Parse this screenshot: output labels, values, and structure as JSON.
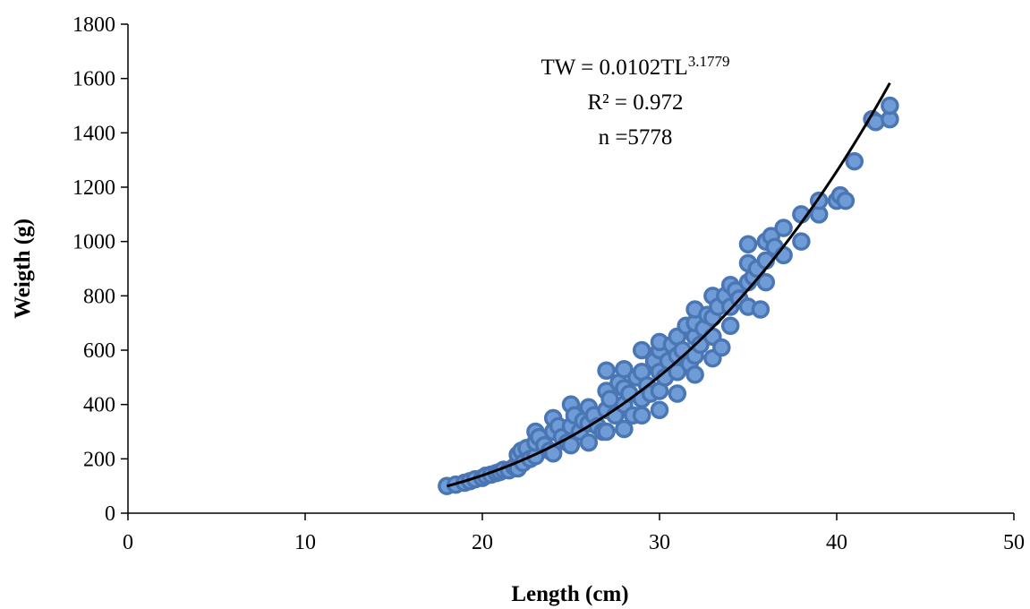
{
  "chart_data": {
    "type": "scatter",
    "xlabel": "Length (cm)",
    "ylabel": "Weigth (g)",
    "xlim": [
      0,
      50
    ],
    "ylim": [
      0,
      1800
    ],
    "xticks": [
      0,
      10,
      20,
      30,
      40,
      50
    ],
    "yticks": [
      0,
      200,
      400,
      600,
      800,
      1000,
      1200,
      1400,
      1600,
      1800
    ],
    "grid": false,
    "marker_color": "#6f9bd6",
    "marker_edge_color": "#4a77b4",
    "trend_color": "#000000",
    "annotation": {
      "equation_base": "TW = 0.0102TL",
      "equation_exponent": "3.1779",
      "r_squared": "R² = 0.972",
      "n": "n =5778"
    },
    "trendline": {
      "a": 0.0102,
      "b": 3.1779,
      "x_range": [
        18,
        43
      ]
    },
    "points": [
      [
        18,
        100
      ],
      [
        18.5,
        105
      ],
      [
        19,
        112
      ],
      [
        19.3,
        118
      ],
      [
        19.6,
        125
      ],
      [
        20,
        130
      ],
      [
        20.2,
        138
      ],
      [
        20.5,
        142
      ],
      [
        20.8,
        148
      ],
      [
        21,
        152
      ],
      [
        21.2,
        160
      ],
      [
        21.5,
        158
      ],
      [
        21.8,
        170
      ],
      [
        22,
        165
      ],
      [
        22,
        215
      ],
      [
        22.2,
        230
      ],
      [
        22.3,
        185
      ],
      [
        22.5,
        240
      ],
      [
        22.7,
        200
      ],
      [
        23,
        210
      ],
      [
        23,
        260
      ],
      [
        23,
        300
      ],
      [
        23.2,
        280
      ],
      [
        23.5,
        250
      ],
      [
        23.8,
        230
      ],
      [
        24,
        220
      ],
      [
        24,
        300
      ],
      [
        24,
        350
      ],
      [
        24.3,
        320
      ],
      [
        24.5,
        280
      ],
      [
        24.8,
        260
      ],
      [
        25,
        250
      ],
      [
        25,
        320
      ],
      [
        25,
        400
      ],
      [
        25.2,
        360
      ],
      [
        25.5,
        300
      ],
      [
        25.7,
        340
      ],
      [
        26,
        260
      ],
      [
        26,
        330
      ],
      [
        26,
        390
      ],
      [
        26.3,
        360
      ],
      [
        26.5,
        320
      ],
      [
        26.8,
        300
      ],
      [
        27,
        300
      ],
      [
        27,
        380
      ],
      [
        27,
        450
      ],
      [
        27,
        525
      ],
      [
        27.2,
        420
      ],
      [
        27.5,
        360
      ],
      [
        27.7,
        480
      ],
      [
        28,
        310
      ],
      [
        28,
        400
      ],
      [
        28,
        460
      ],
      [
        28,
        530
      ],
      [
        28.3,
        440
      ],
      [
        28.5,
        360
      ],
      [
        28.7,
        500
      ],
      [
        29,
        360
      ],
      [
        29,
        420
      ],
      [
        29,
        520
      ],
      [
        29,
        600
      ],
      [
        29.3,
        470
      ],
      [
        29.5,
        440
      ],
      [
        29.7,
        560
      ],
      [
        30,
        380
      ],
      [
        30,
        450
      ],
      [
        30,
        520
      ],
      [
        30,
        600
      ],
      [
        30,
        630
      ],
      [
        30.3,
        500
      ],
      [
        30.5,
        560
      ],
      [
        30.7,
        620
      ],
      [
        31,
        440
      ],
      [
        31,
        520
      ],
      [
        31,
        580
      ],
      [
        31,
        650
      ],
      [
        31.3,
        600
      ],
      [
        31.5,
        690
      ],
      [
        31.7,
        550
      ],
      [
        32,
        510
      ],
      [
        32,
        580
      ],
      [
        32,
        650
      ],
      [
        32,
        700
      ],
      [
        32,
        750
      ],
      [
        32.3,
        620
      ],
      [
        32.5,
        680
      ],
      [
        32.7,
        730
      ],
      [
        33,
        570
      ],
      [
        33,
        650
      ],
      [
        33,
        720
      ],
      [
        33,
        800
      ],
      [
        33.3,
        760
      ],
      [
        33.5,
        610
      ],
      [
        33.7,
        800
      ],
      [
        34,
        690
      ],
      [
        34,
        760
      ],
      [
        34,
        840
      ],
      [
        34.3,
        820
      ],
      [
        34.5,
        790
      ],
      [
        35,
        760
      ],
      [
        35,
        850
      ],
      [
        35,
        920
      ],
      [
        35,
        990
      ],
      [
        35.3,
        870
      ],
      [
        35.5,
        900
      ],
      [
        35.7,
        750
      ],
      [
        36,
        850
      ],
      [
        36,
        930
      ],
      [
        36,
        1000
      ],
      [
        36.3,
        1020
      ],
      [
        36.5,
        980
      ],
      [
        37,
        950
      ],
      [
        37,
        1050
      ],
      [
        38,
        1000
      ],
      [
        38,
        1100
      ],
      [
        39,
        1100
      ],
      [
        39,
        1150
      ],
      [
        40,
        1150
      ],
      [
        40.2,
        1170
      ],
      [
        40.5,
        1150
      ],
      [
        41,
        1295
      ],
      [
        42,
        1450
      ],
      [
        42.2,
        1440
      ],
      [
        43,
        1450
      ],
      [
        43,
        1500
      ]
    ]
  }
}
